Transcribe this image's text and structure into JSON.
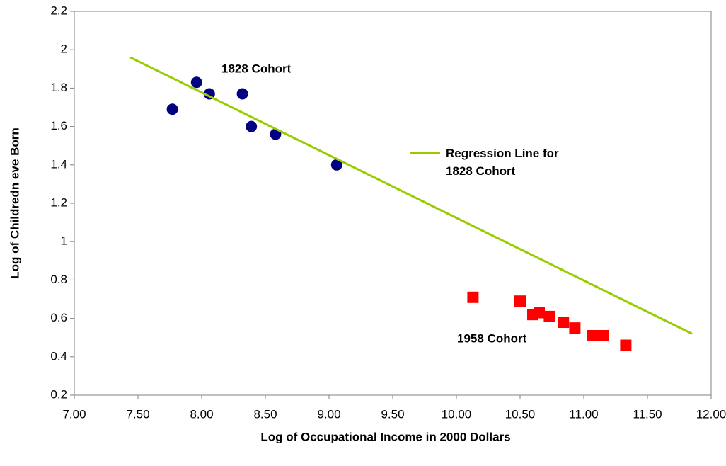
{
  "chart_data": {
    "type": "scatter",
    "xlabel": "Log of Occupational Income in 2000 Dollars",
    "ylabel": "Log of Childredn eve Born",
    "xlim": [
      7,
      12
    ],
    "ylim": [
      0.2,
      2.2
    ],
    "xticks": [
      {
        "value": 7,
        "label": "7.00"
      },
      {
        "value": 7.5,
        "label": "7.50"
      },
      {
        "value": 8,
        "label": "8.00"
      },
      {
        "value": 8.5,
        "label": "8.50"
      },
      {
        "value": 9,
        "label": "9.00"
      },
      {
        "value": 9.5,
        "label": "9.50"
      },
      {
        "value": 10,
        "label": "10.00"
      },
      {
        "value": 10.5,
        "label": "10.50"
      },
      {
        "value": 11,
        "label": "11.00"
      },
      {
        "value": 11.5,
        "label": "11.50"
      },
      {
        "value": 12,
        "label": "12.00"
      }
    ],
    "yticks": [
      0.2,
      0.4,
      0.6,
      0.8,
      1,
      1.2,
      1.4,
      1.6,
      1.8,
      2,
      2.2
    ],
    "grid": false,
    "series": [
      {
        "name": "1828 Cohort",
        "color": "#000080",
        "marker": "circle",
        "x": [
          7.77,
          7.96,
          8.06,
          8.32,
          8.39,
          8.58,
          9.06
        ],
        "values": [
          1.69,
          1.83,
          1.77,
          1.77,
          1.6,
          1.56,
          1.4
        ]
      },
      {
        "name": "1958 Cohort",
        "color": "#ff0000",
        "marker": "square",
        "x": [
          10.13,
          10.5,
          10.6,
          10.65,
          10.73,
          10.84,
          10.93,
          11.07,
          11.15,
          11.33
        ],
        "values": [
          0.71,
          0.69,
          0.62,
          0.63,
          0.61,
          0.58,
          0.55,
          0.51,
          0.51,
          0.46
        ]
      },
      {
        "name": "Regression Line for 1828 Cohort",
        "color": "#99cc00",
        "marker": "line",
        "x": [
          7.44,
          11.85
        ],
        "values": [
          1.96,
          0.52
        ]
      }
    ]
  }
}
